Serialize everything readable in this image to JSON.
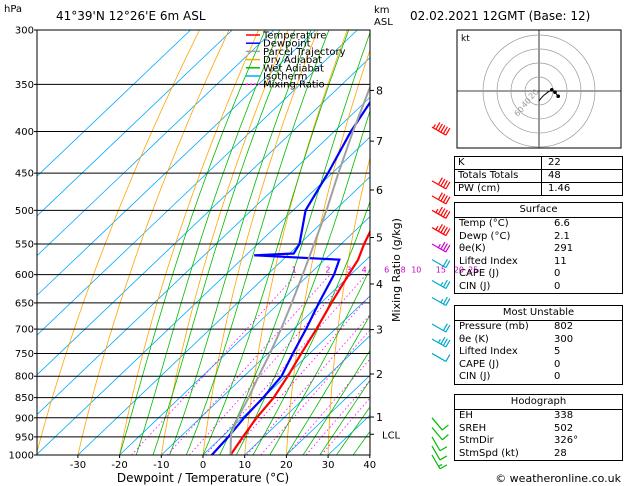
{
  "header": {
    "location": "41°39'N  12°26'E  6m  ASL",
    "datetime": "02.02.2021  12GMT  (Base: 12)",
    "hpa_unit": "hPa",
    "km_unit": "km",
    "asl_unit": "ASL"
  },
  "legend": [
    {
      "label": "Temperature",
      "color": "#ff0000",
      "dash": ""
    },
    {
      "label": "Dewpoint",
      "color": "#0000ff",
      "dash": ""
    },
    {
      "label": "Parcel Trajectory",
      "color": "#a0a0a0",
      "dash": ""
    },
    {
      "label": "Dry Adiabat",
      "color": "#ffa500",
      "dash": ""
    },
    {
      "label": "Wet Adiabat",
      "color": "#00bb00",
      "dash": ""
    },
    {
      "label": "Isotherm",
      "color": "#00aaff",
      "dash": ""
    },
    {
      "label": "Mixing Ratio",
      "color": "#ff00ff",
      "dash": "2,2"
    }
  ],
  "chart_data": {
    "type": "line",
    "xlabel": "Dewpoint / Temperature (°C)",
    "ylabel": "Mixing Ratio (g/kg)",
    "xlim": [
      -35,
      40
    ],
    "ylim": [
      1000,
      300
    ],
    "pressure_ticks": [
      300,
      350,
      400,
      450,
      500,
      550,
      600,
      650,
      700,
      750,
      800,
      850,
      900,
      950,
      1000
    ],
    "temp_ticks": [
      -30,
      -20,
      -10,
      0,
      10,
      20,
      30,
      40
    ],
    "km_ticks": [
      {
        "km": "8",
        "p": 356
      },
      {
        "km": "7",
        "p": 411
      },
      {
        "km": "6",
        "p": 472
      },
      {
        "km": "5",
        "p": 540
      },
      {
        "km": "4",
        "p": 616
      },
      {
        "km": "3",
        "p": 701
      },
      {
        "km": "2",
        "p": 795
      },
      {
        "km": "1",
        "p": 898
      }
    ],
    "lcl": {
      "label": "LCL",
      "p": 943
    },
    "mixing_ratio_labels": [
      "1",
      "2",
      "3",
      "4",
      "6",
      "8",
      "10",
      "15",
      "20",
      "25"
    ],
    "mixing_ratio_values": [
      1,
      2,
      3,
      4,
      6,
      8,
      10,
      15,
      20,
      25
    ],
    "series": [
      {
        "name": "Temperature",
        "color": "#ff0000",
        "points": [
          {
            "p": 1000,
            "t": 6.6
          },
          {
            "p": 950,
            "t": 5.0
          },
          {
            "p": 900,
            "t": 3.5
          },
          {
            "p": 850,
            "t": 2.5
          },
          {
            "p": 800,
            "t": 0.5
          },
          {
            "p": 750,
            "t": -2.0
          },
          {
            "p": 700,
            "t": -4.5
          },
          {
            "p": 650,
            "t": -7.5
          },
          {
            "p": 600,
            "t": -10.5
          },
          {
            "p": 575,
            "t": -12.0
          },
          {
            "p": 550,
            "t": -14.5
          },
          {
            "p": 500,
            "t": -19.0
          },
          {
            "p": 450,
            "t": -24.5
          },
          {
            "p": 400,
            "t": -31.0
          },
          {
            "p": 350,
            "t": -37.5
          },
          {
            "p": 300,
            "t": -45.0
          }
        ]
      },
      {
        "name": "Dewpoint",
        "color": "#0000ff",
        "points": [
          {
            "p": 1000,
            "t": 2.1
          },
          {
            "p": 950,
            "t": 1.5
          },
          {
            "p": 900,
            "t": 0.5
          },
          {
            "p": 850,
            "t": 0.0
          },
          {
            "p": 800,
            "t": -1.0
          },
          {
            "p": 750,
            "t": -4.0
          },
          {
            "p": 700,
            "t": -7.0
          },
          {
            "p": 650,
            "t": -10.5
          },
          {
            "p": 600,
            "t": -14.0
          },
          {
            "p": 575,
            "t": -16.5
          },
          {
            "p": 568,
            "t": -38.0
          },
          {
            "p": 565,
            "t": -29.0
          },
          {
            "p": 550,
            "t": -30.0
          },
          {
            "p": 500,
            "t": -37.0
          },
          {
            "p": 450,
            "t": -41.0
          },
          {
            "p": 400,
            "t": -46.0
          },
          {
            "p": 360,
            "t": -49.5
          },
          {
            "p": 350,
            "t": -53.0
          },
          {
            "p": 330,
            "t": -55.5
          },
          {
            "p": 300,
            "t": -62.0
          }
        ]
      },
      {
        "name": "Parcel Trajectory",
        "color": "#a0a0a0",
        "points": [
          {
            "p": 1000,
            "t": 6.6
          },
          {
            "p": 943,
            "t": 1.5
          },
          {
            "p": 900,
            "t": -1.0
          },
          {
            "p": 850,
            "t": -3.5
          },
          {
            "p": 800,
            "t": -6.5
          },
          {
            "p": 750,
            "t": -9.5
          },
          {
            "p": 700,
            "t": -13.0
          },
          {
            "p": 650,
            "t": -17.0
          },
          {
            "p": 600,
            "t": -21.5
          },
          {
            "p": 550,
            "t": -26.5
          },
          {
            "p": 500,
            "t": -32.0
          },
          {
            "p": 450,
            "t": -38.5
          },
          {
            "p": 400,
            "t": -45.5
          },
          {
            "p": 350,
            "t": -53.0
          },
          {
            "p": 300,
            "t": -62.0
          }
        ]
      }
    ],
    "wind_barbs": [
      {
        "p": 395,
        "speed": 45,
        "dir": 300,
        "color": "#ff0000"
      },
      {
        "p": 460,
        "speed": 40,
        "dir": 300,
        "color": "#ff0000"
      },
      {
        "p": 480,
        "speed": 40,
        "dir": 300,
        "color": "#ff0000"
      },
      {
        "p": 500,
        "speed": 35,
        "dir": 300,
        "color": "#ff0000"
      },
      {
        "p": 525,
        "speed": 35,
        "dir": 300,
        "color": "#ff0000"
      },
      {
        "p": 550,
        "speed": 25,
        "dir": 300,
        "color": "#cc00cc"
      },
      {
        "p": 575,
        "speed": 20,
        "dir": 300,
        "color": "#00aacc"
      },
      {
        "p": 610,
        "speed": 15,
        "dir": 300,
        "color": "#00aacc"
      },
      {
        "p": 640,
        "speed": 15,
        "dir": 300,
        "color": "#00aacc"
      },
      {
        "p": 690,
        "speed": 20,
        "dir": 300,
        "color": "#00aacc"
      },
      {
        "p": 720,
        "speed": 25,
        "dir": 300,
        "color": "#00aacc"
      },
      {
        "p": 750,
        "speed": 10,
        "dir": 300,
        "color": "#00aacc"
      },
      {
        "p": 900,
        "speed": 10,
        "dir": 320,
        "color": "#00bb00"
      },
      {
        "p": 925,
        "speed": 10,
        "dir": 320,
        "color": "#00bb00"
      },
      {
        "p": 950,
        "speed": 10,
        "dir": 330,
        "color": "#00bb00"
      },
      {
        "p": 975,
        "speed": 10,
        "dir": 330,
        "color": "#00bb00"
      },
      {
        "p": 1000,
        "speed": 5,
        "dir": 330,
        "color": "#00bb00"
      }
    ],
    "hodograph": {
      "unit_label": "kt",
      "ring_labels": [
        "20",
        "40",
        "60"
      ],
      "points": [
        [
          0,
          0
        ],
        [
          -1.5,
          4
        ],
        [
          -3,
          7
        ],
        [
          -5.5,
          11
        ],
        [
          -8,
          14
        ],
        [
          -10,
          11
        ],
        [
          -12,
          6
        ]
      ]
    }
  },
  "indices": {
    "rows": [
      {
        "label": "K",
        "value": "22"
      },
      {
        "label": "Totals Totals",
        "value": "48"
      },
      {
        "label": "PW (cm)",
        "value": "1.46"
      }
    ]
  },
  "surface": {
    "title": "Surface",
    "rows": [
      {
        "label": "Temp (°C)",
        "value": "6.6"
      },
      {
        "label": "Dewp (°C)",
        "value": "2.1"
      },
      {
        "label": "θe(K)",
        "value": "291"
      },
      {
        "label": "Lifted Index",
        "value": "11"
      },
      {
        "label": "CAPE (J)",
        "value": "0"
      },
      {
        "label": "CIN (J)",
        "value": "0"
      }
    ]
  },
  "most_unstable": {
    "title": "Most Unstable",
    "rows": [
      {
        "label": "Pressure (mb)",
        "value": "802"
      },
      {
        "label": "θe (K)",
        "value": "300"
      },
      {
        "label": "Lifted Index",
        "value": "5"
      },
      {
        "label": "CAPE (J)",
        "value": "0"
      },
      {
        "label": "CIN (J)",
        "value": "0"
      }
    ]
  },
  "hodograph_table": {
    "title": "Hodograph",
    "rows": [
      {
        "label": "EH",
        "value": "338"
      },
      {
        "label": "SREH",
        "value": "502"
      },
      {
        "label": "StmDir",
        "value": "326°"
      },
      {
        "label": "StmSpd (kt)",
        "value": "28"
      }
    ]
  },
  "footer": {
    "copyright": "© weatheronline.co.uk"
  }
}
